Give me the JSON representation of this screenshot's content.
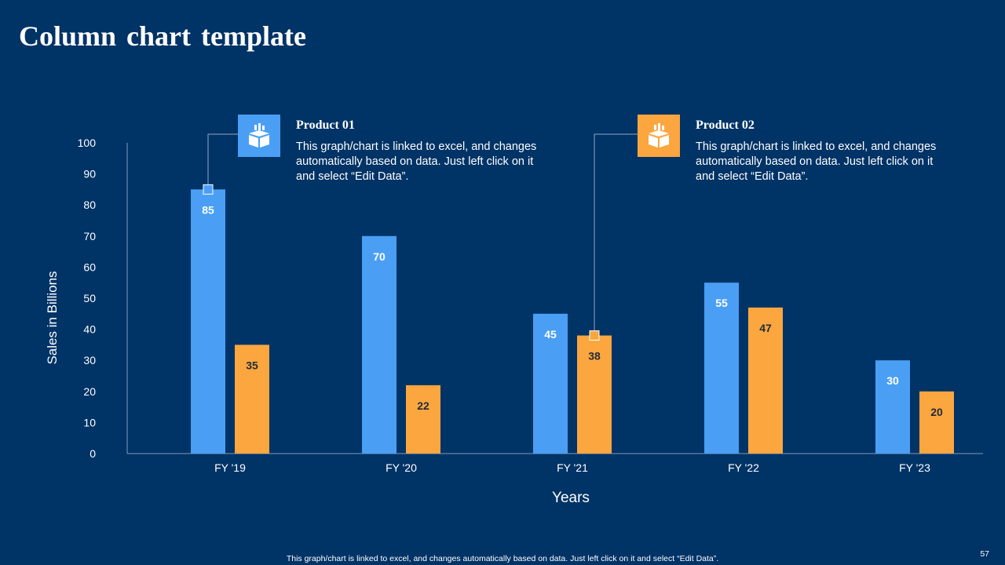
{
  "slide": {
    "title": "Column chart template",
    "footer_note": "This graph/chart is linked to excel, and changes automatically based on data. Just left click on it and select “Edit Data”.",
    "page_number": "57"
  },
  "callouts": [
    {
      "title": "Product 01",
      "body": "This graph/chart is linked to excel, and changes automatically based on data. Just left click on it and select “Edit Data”.",
      "icon": "box-chart-icon",
      "color": "#4a9ff5"
    },
    {
      "title": "Product 02",
      "body": "This graph/chart is linked to excel, and changes automatically based on data. Just left click on it and select “Edit Data”.",
      "icon": "box-chart-icon",
      "color": "#fba63f"
    }
  ],
  "chart_data": {
    "type": "bar",
    "categories": [
      "FY '19",
      "FY '20",
      "FY '21",
      "FY '22",
      "FY '23"
    ],
    "series": [
      {
        "values": [
          85,
          70,
          45,
          55,
          30
        ],
        "color": "#4a9ff5"
      },
      {
        "values": [
          35,
          22,
          38,
          47,
          20
        ],
        "color": "#fba63f"
      }
    ],
    "xlabel": "Years",
    "ylabel": "Sales in Billions",
    "ylim": [
      0,
      100
    ],
    "yticks": [
      0,
      10,
      20,
      30,
      40,
      50,
      60,
      70,
      80,
      90,
      100
    ],
    "grid": false,
    "legend": "none",
    "data_labels": true
  }
}
